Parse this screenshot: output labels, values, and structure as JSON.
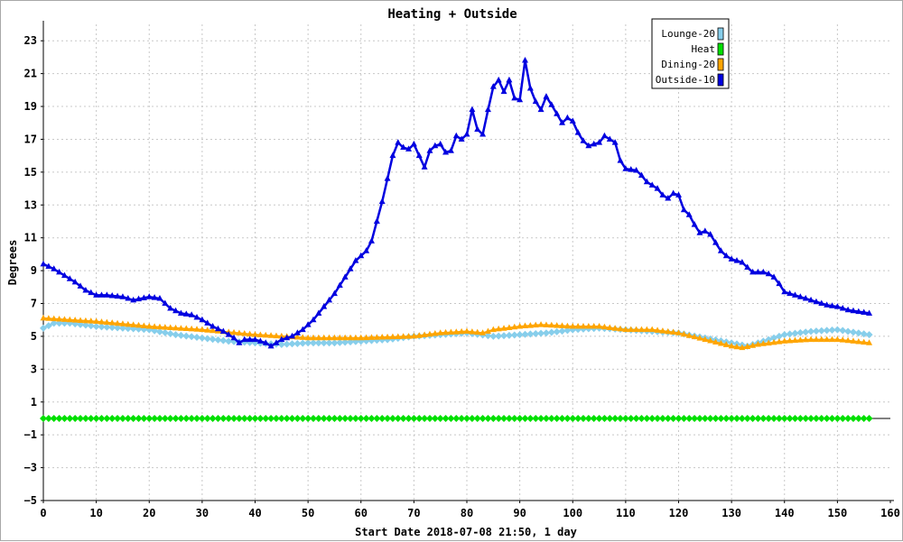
{
  "chart_data": {
    "type": "line",
    "title": "Heating + Outside",
    "xlabel": "Start Date 2018-07-08 21:50, 1 day",
    "ylabel": "Degrees",
    "xlim": [
      0,
      160
    ],
    "ylim": [
      -5,
      24
    ],
    "xticks": [
      0,
      10,
      20,
      30,
      40,
      50,
      60,
      70,
      80,
      90,
      100,
      110,
      120,
      130,
      140,
      150,
      160
    ],
    "yticks": [
      -5,
      -3,
      -1,
      1,
      3,
      5,
      7,
      9,
      11,
      13,
      15,
      17,
      19,
      21,
      23
    ],
    "grid": true,
    "legend_position": "top-right",
    "series": [
      {
        "name": "Lounge-20",
        "color": "#87ceeb",
        "marker": "diamond",
        "points": [
          [
            0,
            5.5
          ],
          [
            2,
            5.8
          ],
          [
            5,
            5.8
          ],
          [
            10,
            5.6
          ],
          [
            20,
            5.4
          ],
          [
            25,
            5.1
          ],
          [
            30,
            4.9
          ],
          [
            35,
            4.7
          ],
          [
            40,
            4.6
          ],
          [
            45,
            4.5
          ],
          [
            50,
            4.6
          ],
          [
            55,
            4.6
          ],
          [
            60,
            4.7
          ],
          [
            65,
            4.8
          ],
          [
            70,
            5.0
          ],
          [
            75,
            5.1
          ],
          [
            80,
            5.2
          ],
          [
            85,
            5.0
          ],
          [
            90,
            5.1
          ],
          [
            95,
            5.2
          ],
          [
            100,
            5.4
          ],
          [
            105,
            5.5
          ],
          [
            110,
            5.4
          ],
          [
            115,
            5.3
          ],
          [
            120,
            5.2
          ],
          [
            125,
            4.9
          ],
          [
            130,
            4.6
          ],
          [
            133,
            4.4
          ],
          [
            135,
            4.6
          ],
          [
            140,
            5.1
          ],
          [
            145,
            5.3
          ],
          [
            150,
            5.4
          ],
          [
            156,
            5.1
          ]
        ]
      },
      {
        "name": "Heat",
        "color": "#00e000",
        "marker": "diamond",
        "points": [
          [
            0,
            0
          ],
          [
            156,
            0
          ]
        ]
      },
      {
        "name": "Dining-20",
        "color": "#ffa500",
        "marker": "triangle",
        "points": [
          [
            0,
            6.1
          ],
          [
            5,
            6.0
          ],
          [
            10,
            5.9
          ],
          [
            20,
            5.6
          ],
          [
            30,
            5.4
          ],
          [
            40,
            5.1
          ],
          [
            45,
            5.0
          ],
          [
            50,
            4.9
          ],
          [
            60,
            4.9
          ],
          [
            70,
            5.0
          ],
          [
            75,
            5.2
          ],
          [
            80,
            5.3
          ],
          [
            83,
            5.2
          ],
          [
            85,
            5.4
          ],
          [
            90,
            5.6
          ],
          [
            94,
            5.7
          ],
          [
            100,
            5.6
          ],
          [
            105,
            5.6
          ],
          [
            110,
            5.4
          ],
          [
            115,
            5.4
          ],
          [
            120,
            5.2
          ],
          [
            125,
            4.8
          ],
          [
            130,
            4.4
          ],
          [
            132,
            4.3
          ],
          [
            135,
            4.5
          ],
          [
            140,
            4.7
          ],
          [
            145,
            4.8
          ],
          [
            150,
            4.8
          ],
          [
            156,
            4.6
          ]
        ]
      },
      {
        "name": "Outside-10",
        "color": "#0000e0",
        "marker": "triangle",
        "points": [
          [
            0,
            9.4
          ],
          [
            2,
            9.1
          ],
          [
            4,
            8.7
          ],
          [
            6,
            8.3
          ],
          [
            8,
            7.8
          ],
          [
            10,
            7.5
          ],
          [
            12,
            7.5
          ],
          [
            15,
            7.4
          ],
          [
            17,
            7.2
          ],
          [
            20,
            7.4
          ],
          [
            22,
            7.3
          ],
          [
            24,
            6.7
          ],
          [
            26,
            6.4
          ],
          [
            28,
            6.3
          ],
          [
            30,
            6.0
          ],
          [
            32,
            5.6
          ],
          [
            34,
            5.3
          ],
          [
            36,
            4.9
          ],
          [
            37,
            4.6
          ],
          [
            38,
            4.8
          ],
          [
            40,
            4.8
          ],
          [
            42,
            4.6
          ],
          [
            43,
            4.4
          ],
          [
            45,
            4.8
          ],
          [
            47,
            5.0
          ],
          [
            49,
            5.4
          ],
          [
            51,
            6.0
          ],
          [
            53,
            6.8
          ],
          [
            55,
            7.6
          ],
          [
            57,
            8.6
          ],
          [
            59,
            9.6
          ],
          [
            61,
            10.2
          ],
          [
            62,
            10.8
          ],
          [
            63,
            12.0
          ],
          [
            64,
            13.2
          ],
          [
            65,
            14.6
          ],
          [
            66,
            16.0
          ],
          [
            67,
            16.8
          ],
          [
            68,
            16.5
          ],
          [
            69,
            16.4
          ],
          [
            70,
            16.7
          ],
          [
            71,
            16.0
          ],
          [
            72,
            15.3
          ],
          [
            73,
            16.3
          ],
          [
            74,
            16.6
          ],
          [
            75,
            16.7
          ],
          [
            76,
            16.2
          ],
          [
            77,
            16.3
          ],
          [
            78,
            17.2
          ],
          [
            79,
            17.0
          ],
          [
            80,
            17.3
          ],
          [
            81,
            18.8
          ],
          [
            82,
            17.6
          ],
          [
            83,
            17.3
          ],
          [
            84,
            18.8
          ],
          [
            85,
            20.2
          ],
          [
            86,
            20.6
          ],
          [
            87,
            19.9
          ],
          [
            88,
            20.6
          ],
          [
            89,
            19.5
          ],
          [
            90,
            19.4
          ],
          [
            91,
            21.8
          ],
          [
            92,
            20.1
          ],
          [
            93,
            19.3
          ],
          [
            94,
            18.8
          ],
          [
            95,
            19.6
          ],
          [
            96,
            19.1
          ],
          [
            98,
            18.0
          ],
          [
            99,
            18.3
          ],
          [
            100,
            18.1
          ],
          [
            101,
            17.4
          ],
          [
            102,
            16.9
          ],
          [
            103,
            16.6
          ],
          [
            104,
            16.7
          ],
          [
            105,
            16.8
          ],
          [
            106,
            17.2
          ],
          [
            107,
            17.0
          ],
          [
            108,
            16.8
          ],
          [
            109,
            15.7
          ],
          [
            110,
            15.2
          ],
          [
            112,
            15.1
          ],
          [
            113,
            14.8
          ],
          [
            114,
            14.4
          ],
          [
            115,
            14.2
          ],
          [
            116,
            14.0
          ],
          [
            117,
            13.6
          ],
          [
            118,
            13.4
          ],
          [
            119,
            13.7
          ],
          [
            120,
            13.6
          ],
          [
            121,
            12.7
          ],
          [
            122,
            12.4
          ],
          [
            123,
            11.8
          ],
          [
            124,
            11.3
          ],
          [
            125,
            11.4
          ],
          [
            126,
            11.2
          ],
          [
            127,
            10.7
          ],
          [
            128,
            10.2
          ],
          [
            129,
            9.9
          ],
          [
            130,
            9.7
          ],
          [
            131,
            9.6
          ],
          [
            132,
            9.5
          ],
          [
            133,
            9.2
          ],
          [
            134,
            8.9
          ],
          [
            136,
            8.9
          ],
          [
            137,
            8.8
          ],
          [
            138,
            8.6
          ],
          [
            139,
            8.2
          ],
          [
            140,
            7.7
          ],
          [
            142,
            7.5
          ],
          [
            143,
            7.4
          ],
          [
            144,
            7.3
          ],
          [
            146,
            7.1
          ],
          [
            148,
            6.9
          ],
          [
            150,
            6.8
          ],
          [
            152,
            6.6
          ],
          [
            154,
            6.5
          ],
          [
            156,
            6.4
          ]
        ]
      }
    ]
  }
}
